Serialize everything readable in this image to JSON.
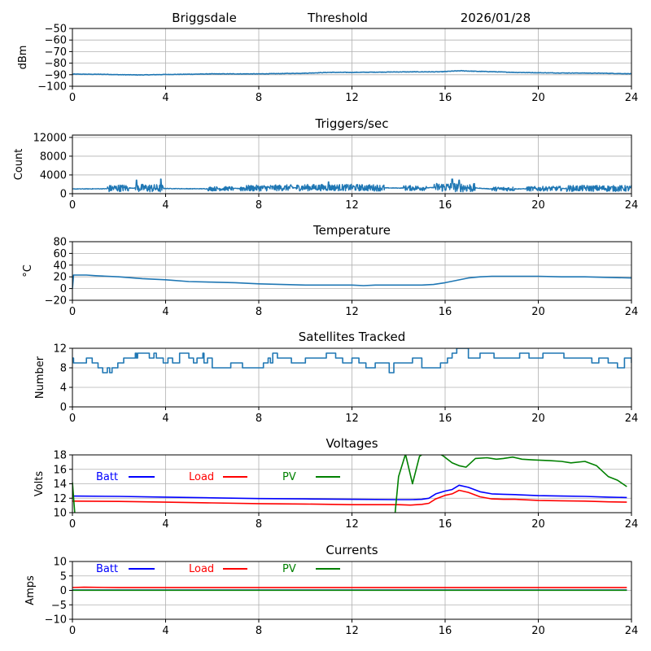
{
  "header": {
    "station": "Briggsdale",
    "mode": "Threshold",
    "date": "2026/01/28"
  },
  "chart_data": [
    {
      "id": "signal",
      "type": "line",
      "title": "",
      "xlabel": "",
      "ylabel": "dBm",
      "xlim": [
        0,
        24
      ],
      "ylim": [
        -100,
        -50
      ],
      "xticks": [
        0,
        4,
        8,
        12,
        16,
        20,
        24
      ],
      "yticks": [
        -50,
        -60,
        -70,
        -80,
        -90,
        -100
      ],
      "ytick_labels": [
        "−50",
        "−60",
        "−70",
        "−80",
        "−90",
        "−100"
      ],
      "grid": true,
      "series": [
        {
          "name": "signal",
          "color": "#1f77b4",
          "noise": 0.4,
          "x": [
            0,
            1.5,
            2,
            3,
            4,
            5,
            6,
            8,
            10,
            11,
            12,
            14,
            15.8,
            16.3,
            16.7,
            17.2,
            18,
            19,
            20,
            21,
            22,
            23,
            24
          ],
          "y": [
            -89.5,
            -89.7,
            -90,
            -90.2,
            -89.8,
            -89.6,
            -89.3,
            -89.3,
            -88.7,
            -88,
            -88,
            -87.6,
            -87.5,
            -86.9,
            -86.6,
            -87,
            -87.4,
            -88,
            -88.3,
            -88.5,
            -88.6,
            -88.8,
            -89.2
          ]
        }
      ]
    },
    {
      "id": "triggers",
      "type": "line",
      "title": "Triggers/sec",
      "xlabel": "",
      "ylabel": "Count",
      "xlim": [
        0,
        24
      ],
      "ylim": [
        0,
        12500
      ],
      "xticks": [
        0,
        4,
        8,
        12,
        16,
        20,
        24
      ],
      "yticks": [
        0,
        4000,
        8000,
        12000
      ],
      "ytick_labels": [
        "0",
        "4000",
        "8000",
        "12000"
      ],
      "grid": true,
      "series": [
        {
          "name": "triggers",
          "color": "#1f77b4",
          "base": {
            "x": [
              0,
              1.5,
              2,
              3,
              4,
              5,
              6,
              7,
              8,
              10,
              12,
              14,
              15,
              16,
              17,
              18,
              20,
              22,
              24
            ],
            "y": [
              1000,
              1050,
              1200,
              1200,
              1100,
              1050,
              1050,
              1100,
              1200,
              1300,
              1300,
              1200,
              1200,
              1400,
              1300,
              1000,
              1050,
              1150,
              1100
            ]
          },
          "noisy_segments": [
            [
              1.5,
              2.4,
              1500
            ],
            [
              2.7,
              3.9,
              1700
            ],
            [
              5.8,
              6.9,
              900
            ],
            [
              7.2,
              9.5,
              1300
            ],
            [
              9.6,
              13.4,
              1400
            ],
            [
              14.2,
              15.2,
              1100
            ],
            [
              15.5,
              17.3,
              1900
            ],
            [
              18.0,
              19.0,
              900
            ],
            [
              19.5,
              21.0,
              1000
            ],
            [
              21.2,
              24.0,
              1300
            ]
          ],
          "spikes": [
            [
              2.75,
              2900
            ],
            [
              3.8,
              3100
            ],
            [
              16.3,
              3100
            ],
            [
              16.6,
              2900
            ],
            [
              11.0,
              2500
            ]
          ]
        }
      ]
    },
    {
      "id": "temperature",
      "type": "line",
      "title": "Temperature",
      "xlabel": "",
      "ylabel": "°C",
      "xlim": [
        0,
        24
      ],
      "ylim": [
        -20,
        80
      ],
      "xticks": [
        0,
        4,
        8,
        12,
        16,
        20,
        24
      ],
      "yticks": [
        -20,
        0,
        20,
        40,
        60,
        80
      ],
      "ytick_labels": [
        "−20",
        "0",
        "20",
        "40",
        "60",
        "80"
      ],
      "grid": true,
      "series": [
        {
          "name": "temperature",
          "color": "#1f77b4",
          "x": [
            0,
            0.05,
            0.6,
            1,
            2,
            3,
            4,
            5,
            6,
            7,
            8,
            9,
            10,
            11,
            12,
            12.5,
            13,
            14,
            15,
            15.5,
            16,
            16.5,
            17,
            17.5,
            18,
            19,
            20,
            21,
            22,
            23,
            24
          ],
          "y": [
            0,
            23,
            23,
            22,
            20,
            17,
            15,
            12,
            11,
            10,
            8,
            7,
            6,
            6,
            6,
            5,
            6,
            6,
            6,
            7,
            10,
            14,
            18,
            20,
            21,
            21,
            21,
            20,
            20,
            19,
            18
          ]
        }
      ]
    },
    {
      "id": "satellites",
      "type": "line",
      "title": "Satellites Tracked",
      "xlabel": "",
      "ylabel": "Number",
      "xlim": [
        0,
        24
      ],
      "ylim": [
        0,
        12
      ],
      "xticks": [
        0,
        4,
        8,
        12,
        16,
        20,
        24
      ],
      "yticks": [
        0,
        4,
        8,
        12
      ],
      "ytick_labels": [
        "0",
        "4",
        "8",
        "12"
      ],
      "grid": true,
      "series": [
        {
          "name": "satellites",
          "color": "#1f77b4",
          "step": true,
          "x": [
            0,
            0.05,
            0.6,
            0.85,
            1.1,
            1.3,
            1.5,
            1.6,
            1.7,
            1.95,
            2.2,
            2.7,
            2.75,
            2.8,
            3.3,
            3.5,
            3.6,
            3.9,
            4.1,
            4.3,
            4.6,
            5.0,
            5.2,
            5.35,
            5.6,
            5.65,
            5.8,
            6.0,
            6.8,
            7.3,
            8.2,
            8.4,
            8.5,
            8.6,
            8.8,
            9.4,
            10.0,
            10.9,
            11.3,
            11.6,
            12.0,
            12.3,
            12.6,
            13.0,
            13.6,
            13.8,
            14.6,
            15.0,
            15.8,
            16.1,
            16.3,
            16.5,
            17.0,
            17.5,
            18.1,
            19.2,
            19.6,
            20.2,
            21.1,
            22.3,
            22.6,
            23.0,
            23.4,
            23.7,
            24.0
          ],
          "y": [
            10,
            9,
            10,
            9,
            8,
            7,
            8,
            7,
            8,
            9,
            10,
            11,
            10,
            11,
            10,
            11,
            10,
            9,
            10,
            9,
            11,
            10,
            9,
            10,
            11,
            9,
            10,
            8,
            9,
            8,
            9,
            10,
            9,
            11,
            10,
            9,
            10,
            11,
            10,
            9,
            10,
            9,
            8,
            9,
            7,
            9,
            10,
            8,
            9,
            10,
            11,
            12,
            10,
            11,
            10,
            11,
            10,
            11,
            10,
            9,
            10,
            9,
            8,
            10,
            9
          ]
        }
      ]
    },
    {
      "id": "voltages",
      "type": "line",
      "title": "Voltages",
      "xlabel": "",
      "ylabel": "Volts",
      "xlim": [
        0,
        24
      ],
      "ylim": [
        10,
        18
      ],
      "xticks": [
        0,
        4,
        8,
        12,
        16,
        20,
        24
      ],
      "yticks": [
        10,
        12,
        14,
        16,
        18
      ],
      "ytick_labels": [
        "10",
        "12",
        "14",
        "16",
        "18"
      ],
      "grid": true,
      "legend": "inline-top",
      "series": [
        {
          "name": "Batt",
          "color": "#0000ff",
          "x": [
            0,
            2,
            4,
            6,
            8,
            10,
            12,
            14,
            14.5,
            15,
            15.3,
            15.6,
            16,
            16.3,
            16.6,
            17,
            17.5,
            18,
            18.5,
            19,
            20,
            21,
            22,
            23,
            23.8
          ],
          "y": [
            12.3,
            12.25,
            12.15,
            12.05,
            11.95,
            11.9,
            11.85,
            11.8,
            11.8,
            11.85,
            12.0,
            12.6,
            13.0,
            13.2,
            13.8,
            13.5,
            12.9,
            12.6,
            12.55,
            12.5,
            12.35,
            12.3,
            12.25,
            12.15,
            12.1
          ]
        },
        {
          "name": "Load",
          "color": "#ff0000",
          "x": [
            0,
            2,
            4,
            6,
            8,
            10,
            12,
            14,
            14.5,
            15,
            15.3,
            15.6,
            16,
            16.3,
            16.6,
            17,
            17.5,
            18,
            18.5,
            19,
            20,
            21,
            22,
            23,
            23.8
          ],
          "y": [
            11.6,
            11.55,
            11.45,
            11.35,
            11.25,
            11.2,
            11.1,
            11.1,
            11.05,
            11.15,
            11.3,
            11.9,
            12.4,
            12.6,
            13.1,
            12.8,
            12.2,
            11.9,
            11.85,
            11.85,
            11.7,
            11.65,
            11.6,
            11.5,
            11.45
          ]
        },
        {
          "name": "PV",
          "color": "#008000",
          "x": [
            0,
            0.1,
            13.85,
            14.0,
            14.3,
            14.6,
            14.9,
            15.2,
            15.5,
            15.9,
            16.3,
            16.6,
            16.9,
            17.3,
            17.8,
            18.2,
            18.5,
            18.9,
            19.3,
            19.8,
            20.5,
            21.0,
            21.4,
            22.0,
            22.5,
            23.0,
            23.4,
            23.8
          ],
          "y": [
            14.2,
            9.9,
            9.9,
            15.0,
            18.1,
            14.0,
            17.8,
            18.5,
            18.6,
            17.9,
            16.9,
            16.5,
            16.3,
            17.5,
            17.6,
            17.4,
            17.5,
            17.7,
            17.4,
            17.3,
            17.2,
            17.1,
            16.9,
            17.1,
            16.5,
            15.0,
            14.5,
            13.6
          ]
        }
      ]
    },
    {
      "id": "currents",
      "type": "line",
      "title": "Currents",
      "xlabel": "",
      "ylabel": "Amps",
      "xlim": [
        0,
        24
      ],
      "ylim": [
        -10,
        10
      ],
      "xticks": [
        0,
        4,
        8,
        12,
        16,
        20,
        24
      ],
      "yticks": [
        -10,
        -5,
        0,
        5,
        10
      ],
      "ytick_labels": [
        "−10",
        "−5",
        "0",
        "5",
        "10"
      ],
      "grid": true,
      "legend": "inline-top",
      "series": [
        {
          "name": "Batt",
          "color": "#0000ff",
          "x": [
            0,
            23.8
          ],
          "y": [
            0.1,
            0.1
          ]
        },
        {
          "name": "Load",
          "color": "#ff0000",
          "x": [
            0,
            0.5,
            2,
            23.8
          ],
          "y": [
            1.0,
            1.1,
            0.95,
            0.95
          ]
        },
        {
          "name": "PV",
          "color": "#008000",
          "x": [
            0,
            23.8
          ],
          "y": [
            0.05,
            0.05
          ]
        }
      ]
    }
  ]
}
